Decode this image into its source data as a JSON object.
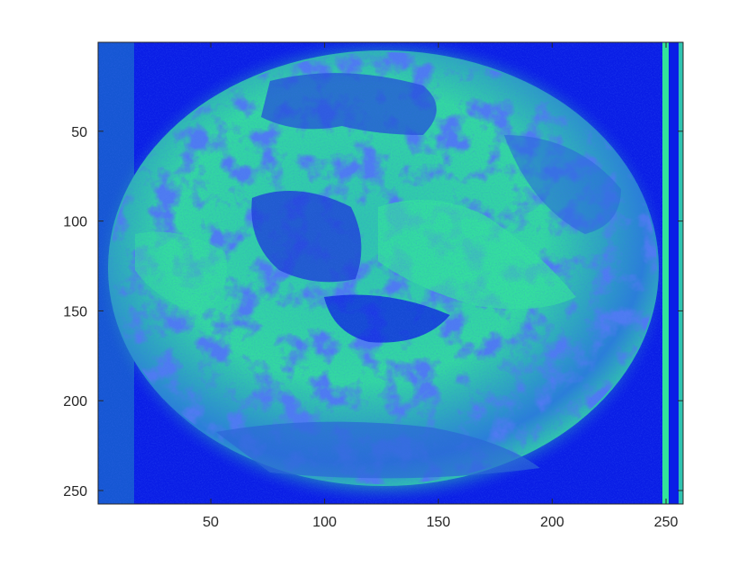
{
  "figure": {
    "image_description_colors": {
      "deep_blue": "#0a1ee6",
      "mid_blue": "#2b5fe0",
      "teal": "#2fc4b0",
      "mint": "#33e39a",
      "axis_color": "#262626"
    },
    "colormap_name": "winter"
  },
  "chart_data": {
    "type": "heatmap",
    "title": "",
    "xlabel": "",
    "ylabel": "",
    "xlim": [
      0.5,
      257.5
    ],
    "ylim": [
      0.5,
      257.5
    ],
    "y_reversed": true,
    "xticks": [
      50,
      100,
      150,
      200,
      250
    ],
    "yticks": [
      50,
      100,
      150,
      200,
      250
    ],
    "xtick_labels": [
      "50",
      "100",
      "150",
      "200",
      "250"
    ],
    "ytick_labels": [
      "50",
      "100",
      "150",
      "200",
      "250"
    ],
    "grid": false
  }
}
